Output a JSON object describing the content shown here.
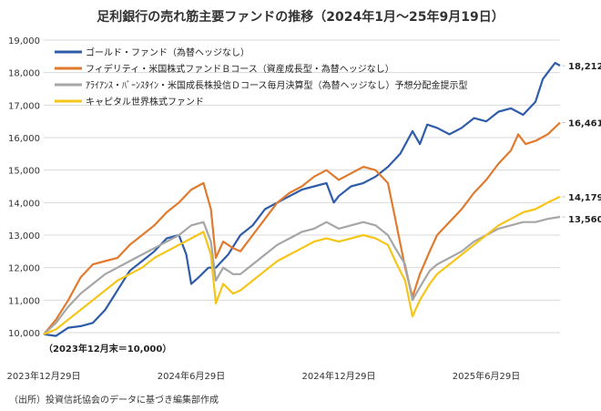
{
  "chart_data": {
    "type": "line",
    "title": "足利銀行の売れ筋主要ファンドの推移（2024年1月〜25年9月19日）",
    "source": "（出所）投資信託協会のデータに基づき編集部作成",
    "base_note": "（2023年12月末＝10,000）",
    "ylim": [
      10000,
      19000
    ],
    "y_ticks": [
      10000,
      11000,
      12000,
      13000,
      14000,
      15000,
      16000,
      17000,
      18000,
      19000
    ],
    "y_tick_labels": [
      "10,000",
      "11,000",
      "12,000",
      "13,000",
      "14,000",
      "15,000",
      "16,000",
      "17,000",
      "18,000",
      "19,000"
    ],
    "x_range": [
      0,
      21
    ],
    "x_ticks": [
      0,
      6,
      12,
      18
    ],
    "x_tick_labels": [
      "2023年12月29日",
      "2024年6月29日",
      "2024年12月29日",
      "2025年6月29日"
    ],
    "series": [
      {
        "name": "ゴールド・ファンド（為替ヘッジなし）",
        "color": "#2e5ca8",
        "end_label": "18,212",
        "points": [
          [
            0,
            9950
          ],
          [
            0.5,
            9900
          ],
          [
            1,
            10150
          ],
          [
            1.5,
            10200
          ],
          [
            2,
            10300
          ],
          [
            2.5,
            10700
          ],
          [
            3,
            11300
          ],
          [
            3.5,
            11900
          ],
          [
            4,
            12200
          ],
          [
            4.5,
            12500
          ],
          [
            5,
            12900
          ],
          [
            5.5,
            13000
          ],
          [
            5.8,
            12400
          ],
          [
            6,
            11500
          ],
          [
            6.3,
            11700
          ],
          [
            6.7,
            12000
          ],
          [
            7,
            12000
          ],
          [
            7.5,
            12400
          ],
          [
            8,
            13000
          ],
          [
            8.5,
            13300
          ],
          [
            9,
            13800
          ],
          [
            9.5,
            14000
          ],
          [
            10,
            14200
          ],
          [
            10.5,
            14400
          ],
          [
            11,
            14500
          ],
          [
            11.5,
            14600
          ],
          [
            11.8,
            14000
          ],
          [
            12,
            14200
          ],
          [
            12.5,
            14500
          ],
          [
            13,
            14600
          ],
          [
            13.5,
            14800
          ],
          [
            14,
            15100
          ],
          [
            14.5,
            15500
          ],
          [
            15,
            16200
          ],
          [
            15.3,
            15800
          ],
          [
            15.6,
            16400
          ],
          [
            16,
            16300
          ],
          [
            16.5,
            16100
          ],
          [
            17,
            16300
          ],
          [
            17.5,
            16600
          ],
          [
            18,
            16500
          ],
          [
            18.5,
            16800
          ],
          [
            19,
            16900
          ],
          [
            19.5,
            16700
          ],
          [
            20,
            17100
          ],
          [
            20.3,
            17800
          ],
          [
            20.6,
            18100
          ],
          [
            20.8,
            18300
          ],
          [
            21,
            18212
          ]
        ]
      },
      {
        "name": "フィデリティ・米国株式ファンドＢコース（資産成長型・為替ヘッジなし）",
        "color": "#e07a2e",
        "end_label": "16,461",
        "points": [
          [
            0,
            9950
          ],
          [
            0.5,
            10400
          ],
          [
            1,
            11000
          ],
          [
            1.5,
            11700
          ],
          [
            2,
            12100
          ],
          [
            2.5,
            12200
          ],
          [
            3,
            12300
          ],
          [
            3.5,
            12700
          ],
          [
            4,
            13000
          ],
          [
            4.5,
            13300
          ],
          [
            5,
            13700
          ],
          [
            5.5,
            14000
          ],
          [
            6,
            14400
          ],
          [
            6.5,
            14600
          ],
          [
            6.8,
            13800
          ],
          [
            7,
            12300
          ],
          [
            7.3,
            12800
          ],
          [
            7.7,
            12600
          ],
          [
            8,
            12500
          ],
          [
            8.5,
            13000
          ],
          [
            9,
            13500
          ],
          [
            9.5,
            14000
          ],
          [
            10,
            14300
          ],
          [
            10.5,
            14500
          ],
          [
            11,
            14800
          ],
          [
            11.5,
            15000
          ],
          [
            12,
            14700
          ],
          [
            12.5,
            14900
          ],
          [
            13,
            15100
          ],
          [
            13.5,
            15000
          ],
          [
            14,
            14600
          ],
          [
            14.3,
            13500
          ],
          [
            14.7,
            12000
          ],
          [
            15,
            11100
          ],
          [
            15.3,
            11800
          ],
          [
            15.7,
            12500
          ],
          [
            16,
            13000
          ],
          [
            16.5,
            13400
          ],
          [
            17,
            13800
          ],
          [
            17.5,
            14300
          ],
          [
            18,
            14700
          ],
          [
            18.5,
            15200
          ],
          [
            19,
            15600
          ],
          [
            19.3,
            16100
          ],
          [
            19.6,
            15800
          ],
          [
            20,
            15900
          ],
          [
            20.5,
            16100
          ],
          [
            21,
            16461
          ]
        ]
      },
      {
        "name": "ｱﾗｲｱﾝｽ・ﾊﾞｰﾝｽﾀｲﾝ・米国成長株投信Ｄコース毎月決算型（為替ヘッジなし）予想分配金提示型",
        "color": "#a6a6a6",
        "end_label": "13,560",
        "points": [
          [
            0,
            9950
          ],
          [
            0.5,
            10300
          ],
          [
            1,
            10800
          ],
          [
            1.5,
            11200
          ],
          [
            2,
            11500
          ],
          [
            2.5,
            11800
          ],
          [
            3,
            12000
          ],
          [
            3.5,
            12200
          ],
          [
            4,
            12400
          ],
          [
            4.5,
            12600
          ],
          [
            5,
            12800
          ],
          [
            5.5,
            13000
          ],
          [
            6,
            13300
          ],
          [
            6.5,
            13400
          ],
          [
            6.8,
            12800
          ],
          [
            7,
            11600
          ],
          [
            7.3,
            12000
          ],
          [
            7.7,
            11800
          ],
          [
            8,
            11800
          ],
          [
            8.5,
            12100
          ],
          [
            9,
            12400
          ],
          [
            9.5,
            12700
          ],
          [
            10,
            12900
          ],
          [
            10.5,
            13100
          ],
          [
            11,
            13200
          ],
          [
            11.5,
            13400
          ],
          [
            12,
            13200
          ],
          [
            12.5,
            13300
          ],
          [
            13,
            13400
          ],
          [
            13.5,
            13300
          ],
          [
            14,
            13000
          ],
          [
            14.3,
            12600
          ],
          [
            14.7,
            12100
          ],
          [
            15,
            11000
          ],
          [
            15.3,
            11400
          ],
          [
            15.7,
            11900
          ],
          [
            16,
            12100
          ],
          [
            16.5,
            12300
          ],
          [
            17,
            12500
          ],
          [
            17.5,
            12800
          ],
          [
            18,
            13000
          ],
          [
            18.5,
            13200
          ],
          [
            19,
            13300
          ],
          [
            19.5,
            13400
          ],
          [
            20,
            13400
          ],
          [
            20.5,
            13500
          ],
          [
            21,
            13560
          ]
        ]
      },
      {
        "name": "キャピタル世界株式ファンド",
        "color": "#f5c518",
        "end_label": "14,179",
        "points": [
          [
            0,
            9950
          ],
          [
            0.5,
            10100
          ],
          [
            1,
            10400
          ],
          [
            1.5,
            10700
          ],
          [
            2,
            11000
          ],
          [
            2.5,
            11300
          ],
          [
            3,
            11600
          ],
          [
            3.5,
            11800
          ],
          [
            4,
            12000
          ],
          [
            4.5,
            12300
          ],
          [
            5,
            12500
          ],
          [
            5.5,
            12700
          ],
          [
            6,
            12900
          ],
          [
            6.5,
            13100
          ],
          [
            6.8,
            12400
          ],
          [
            7,
            10900
          ],
          [
            7.3,
            11500
          ],
          [
            7.7,
            11200
          ],
          [
            8,
            11300
          ],
          [
            8.5,
            11600
          ],
          [
            9,
            11900
          ],
          [
            9.5,
            12200
          ],
          [
            10,
            12400
          ],
          [
            10.5,
            12600
          ],
          [
            11,
            12800
          ],
          [
            11.5,
            12900
          ],
          [
            12,
            12800
          ],
          [
            12.5,
            12900
          ],
          [
            13,
            13000
          ],
          [
            13.5,
            12900
          ],
          [
            14,
            12700
          ],
          [
            14.3,
            12200
          ],
          [
            14.7,
            11600
          ],
          [
            15,
            10500
          ],
          [
            15.3,
            11000
          ],
          [
            15.7,
            11500
          ],
          [
            16,
            11800
          ],
          [
            16.5,
            12100
          ],
          [
            17,
            12400
          ],
          [
            17.5,
            12700
          ],
          [
            18,
            13000
          ],
          [
            18.5,
            13300
          ],
          [
            19,
            13500
          ],
          [
            19.5,
            13700
          ],
          [
            20,
            13800
          ],
          [
            20.5,
            14000
          ],
          [
            21,
            14179
          ]
        ]
      }
    ]
  }
}
